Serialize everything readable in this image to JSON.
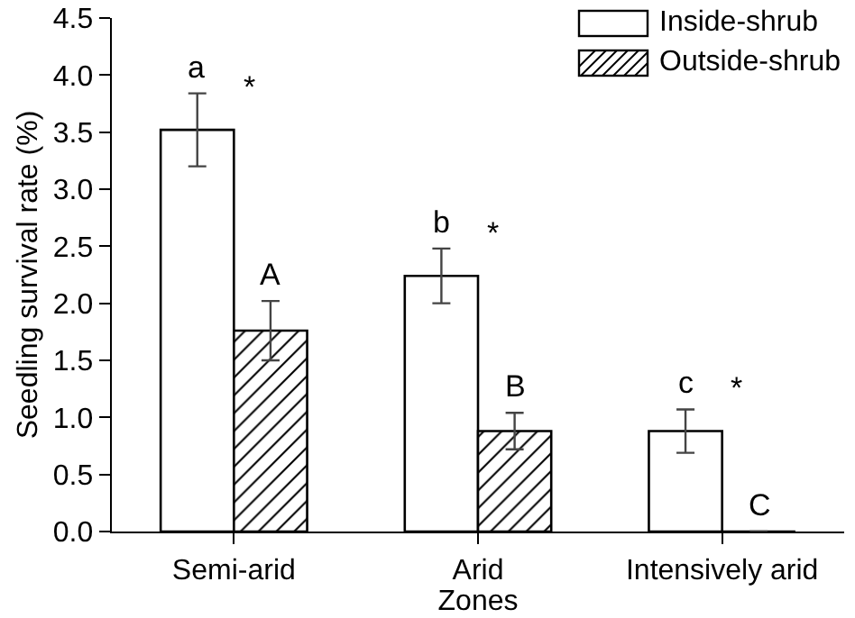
{
  "chart_data": {
    "type": "bar",
    "xlabel": "Zones",
    "ylabel": "Seedling survival rate (%)",
    "categories": [
      "Semi-arid",
      "Arid",
      "Intensively arid"
    ],
    "series": [
      {
        "name": "Inside-shrub",
        "color": "#ffffff",
        "values": [
          3.52,
          2.24,
          0.88
        ],
        "value_labels": [
          "a",
          "b",
          "c"
        ],
        "errors": [
          [
            3.2,
            3.84
          ],
          [
            2.0,
            2.48
          ],
          [
            0.69,
            1.07
          ]
        ]
      },
      {
        "name": "Outside-shrub",
        "color": "#000000",
        "values": [
          1.76,
          0.88,
          0
        ],
        "value_labels": [
          "A",
          "B",
          "C"
        ],
        "errors": [
          [
            1.5,
            2.02
          ],
          [
            0.72,
            1.04
          ],
          null
        ]
      }
    ],
    "ylim": [
      0,
      4.5
    ],
    "yticks": [
      {
        "value": 0,
        "label": "0.0"
      },
      {
        "value": 0.5,
        "label": "0.5"
      },
      {
        "value": 1,
        "label": "1.0"
      },
      {
        "value": 1.5,
        "label": "1.5"
      },
      {
        "value": 2,
        "label": "2.0"
      },
      {
        "value": 2.5,
        "label": "2.5"
      },
      {
        "value": 3,
        "label": "3.0"
      },
      {
        "value": 3.5,
        "label": "3.5"
      },
      {
        "value": 4,
        "label": "4.0"
      },
      {
        "value": 4.5,
        "label": "4.5"
      }
    ],
    "grid": false,
    "legend": "top right",
    "annotations": [
      "*",
      "*",
      "*"
    ]
  }
}
